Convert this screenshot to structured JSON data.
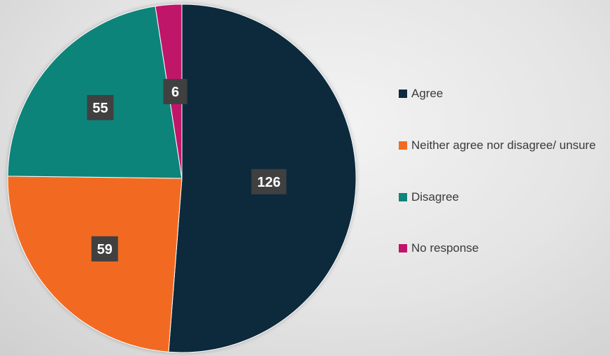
{
  "chart_data": {
    "type": "pie",
    "categories": [
      "Agree",
      "Neither agree nor disagree/ unsure",
      "Disagree",
      "No response"
    ],
    "values": [
      126,
      59,
      55,
      6
    ],
    "data_labels": [
      "126",
      "59",
      "55",
      "6"
    ],
    "colors": [
      "#0d2b3e",
      "#f26b21",
      "#10847a",
      "#c0136b"
    ],
    "legend_position": "right",
    "start_angle": "12 o'clock",
    "direction": "clockwise"
  },
  "legend": {
    "items": [
      {
        "label": "Agree",
        "color": "#0d2b3e"
      },
      {
        "label": "Neither agree nor disagree/ unsure",
        "color": "#f26b21"
      },
      {
        "label": "Disagree",
        "color": "#10847a"
      },
      {
        "label": "No response",
        "color": "#c0136b"
      }
    ]
  },
  "label_box_color": "#404040"
}
